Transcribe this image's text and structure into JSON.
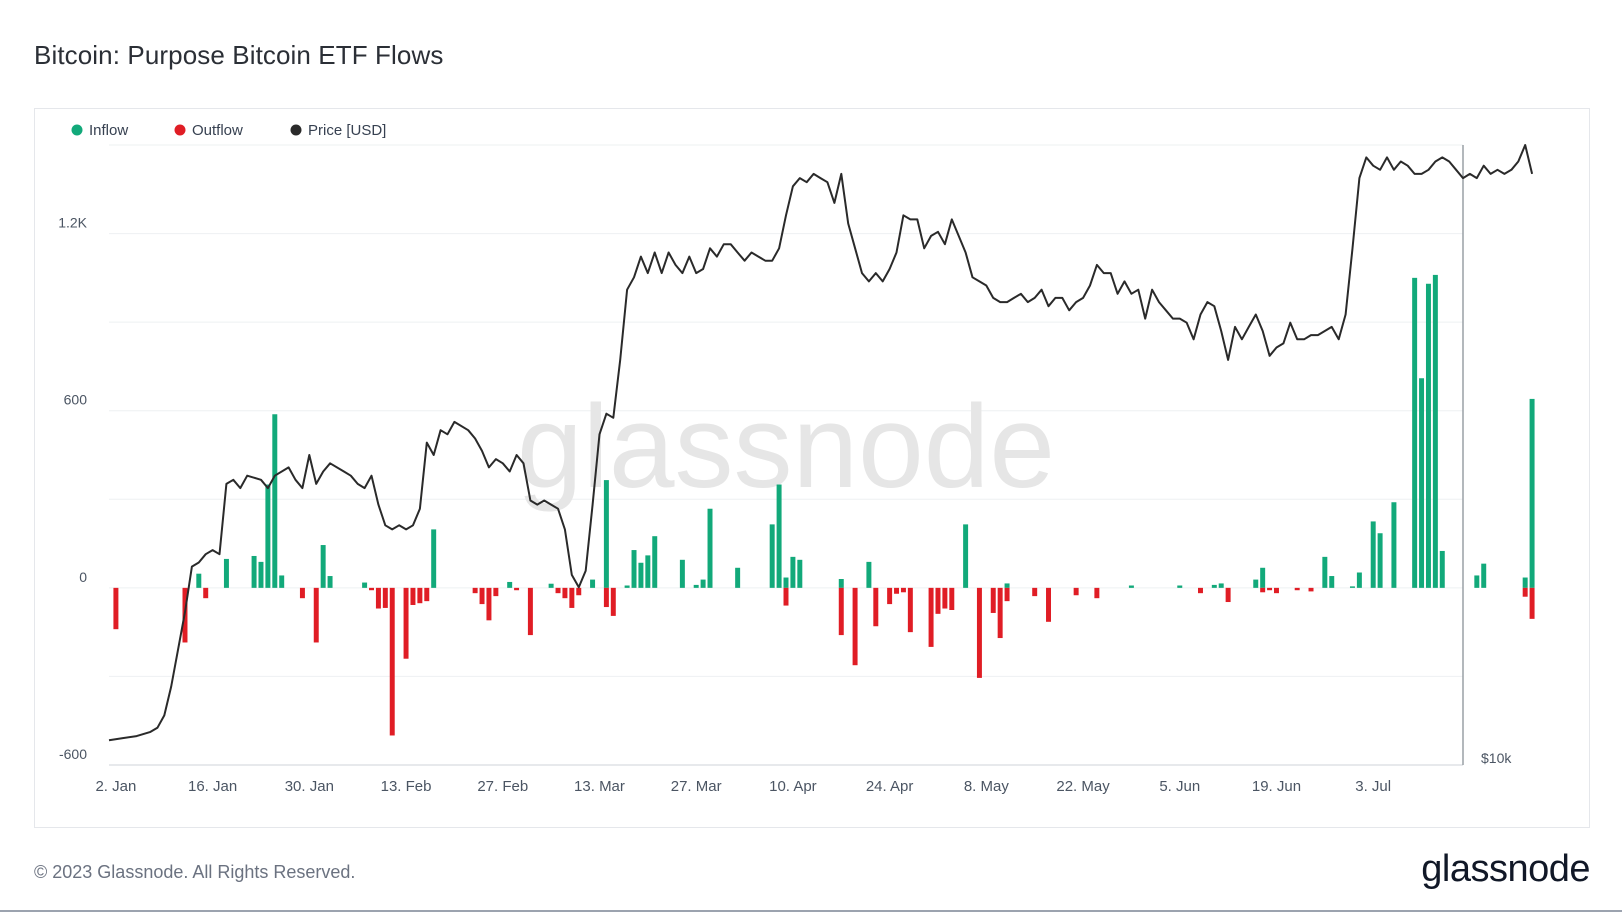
{
  "header": {
    "title": "Bitcoin: Purpose Bitcoin ETF Flows"
  },
  "footer": {
    "copyright": "© 2023 Glassnode. All Rights Reserved.",
    "logo": "glassnode"
  },
  "watermark": "glassnode",
  "colors": {
    "inflow": "#12a97a",
    "outflow": "#e01d25",
    "price": "#2a2a2a",
    "grid": "#eef0f2"
  },
  "chart_data": {
    "type": "bar",
    "title": "Bitcoin: Purpose Bitcoin ETF Flows",
    "legend": [
      {
        "key": "inflow",
        "label": "Inflow",
        "color": "#12a97a"
      },
      {
        "key": "outflow",
        "label": "Outflow",
        "color": "#e01d25"
      },
      {
        "key": "price",
        "label": "Price [USD]",
        "color": "#2a2a2a"
      }
    ],
    "legend_position": "top-left",
    "grid": true,
    "x_ticks": [
      "2. Jan",
      "16. Jan",
      "30. Jan",
      "13. Feb",
      "27. Feb",
      "13. Mar",
      "27. Mar",
      "10. Apr",
      "24. Apr",
      "8. May",
      "22. May",
      "5. Jun",
      "19. Jun",
      "3. Jul"
    ],
    "x_range": [
      "2023-01-01",
      "2023-07-16"
    ],
    "y_left": {
      "ticks": [
        -600,
        0,
        600,
        1200
      ],
      "tick_labels": [
        "-600",
        "0",
        "600",
        "1.2K"
      ],
      "range": [
        -600,
        1500
      ]
    },
    "y_right": {
      "ticks": [
        "$10k"
      ],
      "range": [
        16000,
        31000
      ]
    },
    "inflow": [
      [
        5,
        0
      ],
      [
        7,
        0
      ],
      [
        10,
        0
      ],
      [
        13,
        48
      ],
      [
        17,
        98
      ],
      [
        21,
        108
      ],
      [
        22,
        88
      ],
      [
        23,
        350
      ],
      [
        24,
        588
      ],
      [
        25,
        42
      ],
      [
        31,
        145
      ],
      [
        32,
        40
      ],
      [
        36,
        0
      ],
      [
        37,
        18
      ],
      [
        47,
        198
      ],
      [
        57,
        0
      ],
      [
        58,
        20
      ],
      [
        64,
        14
      ],
      [
        70,
        28
      ],
      [
        72,
        365
      ],
      [
        75,
        8
      ],
      [
        76,
        128
      ],
      [
        77,
        85
      ],
      [
        78,
        110
      ],
      [
        79,
        175
      ],
      [
        83,
        95
      ],
      [
        85,
        10
      ],
      [
        86,
        28
      ],
      [
        87,
        268
      ],
      [
        91,
        68
      ],
      [
        96,
        215
      ],
      [
        97,
        350
      ],
      [
        98,
        35
      ],
      [
        99,
        105
      ],
      [
        100,
        95
      ],
      [
        106,
        30
      ],
      [
        110,
        88
      ],
      [
        124,
        215
      ],
      [
        130,
        15
      ],
      [
        148,
        8
      ],
      [
        155,
        8
      ],
      [
        160,
        10
      ],
      [
        161,
        15
      ],
      [
        166,
        28
      ],
      [
        167,
        68
      ],
      [
        176,
        105
      ],
      [
        177,
        40
      ],
      [
        180,
        5
      ],
      [
        181,
        52
      ],
      [
        183,
        225
      ],
      [
        184,
        185
      ],
      [
        186,
        290
      ],
      [
        189,
        1050
      ],
      [
        190,
        710
      ],
      [
        191,
        1030
      ],
      [
        192,
        1060
      ],
      [
        193,
        125
      ],
      [
        198,
        42
      ],
      [
        199,
        82
      ],
      [
        205,
        35
      ],
      [
        206,
        640
      ]
    ],
    "outflow": [
      [
        1,
        -140
      ],
      [
        11,
        -185
      ],
      [
        14,
        -35
      ],
      [
        28,
        -35
      ],
      [
        30,
        -185
      ],
      [
        38,
        -8
      ],
      [
        39,
        -70
      ],
      [
        40,
        -68
      ],
      [
        41,
        -500
      ],
      [
        43,
        -240
      ],
      [
        44,
        -58
      ],
      [
        45,
        -52
      ],
      [
        46,
        -45
      ],
      [
        53,
        -18
      ],
      [
        54,
        -55
      ],
      [
        55,
        -110
      ],
      [
        56,
        -28
      ],
      [
        59,
        -8
      ],
      [
        61,
        -160
      ],
      [
        65,
        -18
      ],
      [
        66,
        -35
      ],
      [
        67,
        -68
      ],
      [
        68,
        -25
      ],
      [
        72,
        -65
      ],
      [
        73,
        -95
      ],
      [
        98,
        -60
      ],
      [
        106,
        -160
      ],
      [
        108,
        -262
      ],
      [
        111,
        -130
      ],
      [
        113,
        -55
      ],
      [
        114,
        -20
      ],
      [
        115,
        -15
      ],
      [
        116,
        -150
      ],
      [
        119,
        -200
      ],
      [
        120,
        -88
      ],
      [
        121,
        -70
      ],
      [
        122,
        -75
      ],
      [
        126,
        -305
      ],
      [
        128,
        -85
      ],
      [
        129,
        -170
      ],
      [
        130,
        -45
      ],
      [
        134,
        -28
      ],
      [
        136,
        -115
      ],
      [
        140,
        -25
      ],
      [
        143,
        -35
      ],
      [
        158,
        -18
      ],
      [
        162,
        -48
      ],
      [
        167,
        -15
      ],
      [
        168,
        -8
      ],
      [
        169,
        -18
      ],
      [
        172,
        -8
      ],
      [
        174,
        -12
      ],
      [
        205,
        -30
      ],
      [
        206,
        -105
      ]
    ],
    "price": [
      [
        0,
        16600
      ],
      [
        2,
        16650
      ],
      [
        4,
        16700
      ],
      [
        6,
        16800
      ],
      [
        7,
        16900
      ],
      [
        8,
        17200
      ],
      [
        9,
        17900
      ],
      [
        10,
        18800
      ],
      [
        11,
        19700
      ],
      [
        12,
        20800
      ],
      [
        13,
        20900
      ],
      [
        14,
        21100
      ],
      [
        15,
        21200
      ],
      [
        16,
        21100
      ],
      [
        17,
        22800
      ],
      [
        18,
        22900
      ],
      [
        19,
        22700
      ],
      [
        20,
        23000
      ],
      [
        22,
        22900
      ],
      [
        23,
        22700
      ],
      [
        24,
        23000
      ],
      [
        26,
        23200
      ],
      [
        27,
        22900
      ],
      [
        28,
        22700
      ],
      [
        29,
        23500
      ],
      [
        30,
        22800
      ],
      [
        31,
        23100
      ],
      [
        32,
        23300
      ],
      [
        34,
        23100
      ],
      [
        35,
        23000
      ],
      [
        36,
        22800
      ],
      [
        37,
        22700
      ],
      [
        38,
        23000
      ],
      [
        39,
        22300
      ],
      [
        40,
        21800
      ],
      [
        41,
        21700
      ],
      [
        42,
        21800
      ],
      [
        43,
        21700
      ],
      [
        44,
        21800
      ],
      [
        45,
        22200
      ],
      [
        46,
        23800
      ],
      [
        47,
        23500
      ],
      [
        48,
        24100
      ],
      [
        49,
        24000
      ],
      [
        50,
        24300
      ],
      [
        52,
        24100
      ],
      [
        53,
        23900
      ],
      [
        54,
        23600
      ],
      [
        55,
        23200
      ],
      [
        56,
        23400
      ],
      [
        57,
        23300
      ],
      [
        58,
        23100
      ],
      [
        59,
        23500
      ],
      [
        60,
        23300
      ],
      [
        61,
        22400
      ],
      [
        62,
        22300
      ],
      [
        63,
        22400
      ],
      [
        64,
        22300
      ],
      [
        65,
        22200
      ],
      [
        66,
        21700
      ],
      [
        67,
        20600
      ],
      [
        68,
        20300
      ],
      [
        69,
        20700
      ],
      [
        70,
        22300
      ],
      [
        71,
        24000
      ],
      [
        72,
        24500
      ],
      [
        73,
        24400
      ],
      [
        74,
        25800
      ],
      [
        75,
        27500
      ],
      [
        76,
        27800
      ],
      [
        77,
        28300
      ],
      [
        78,
        27900
      ],
      [
        79,
        28400
      ],
      [
        80,
        27900
      ],
      [
        81,
        28400
      ],
      [
        82,
        28100
      ],
      [
        83,
        27900
      ],
      [
        84,
        28300
      ],
      [
        85,
        27900
      ],
      [
        86,
        28000
      ],
      [
        87,
        28500
      ],
      [
        88,
        28300
      ],
      [
        89,
        28600
      ],
      [
        90,
        28600
      ],
      [
        91,
        28400
      ],
      [
        92,
        28200
      ],
      [
        93,
        28400
      ],
      [
        94,
        28300
      ],
      [
        95,
        28200
      ],
      [
        96,
        28200
      ],
      [
        97,
        28500
      ],
      [
        98,
        29300
      ],
      [
        99,
        30000
      ],
      [
        100,
        30200
      ],
      [
        101,
        30100
      ],
      [
        102,
        30300
      ],
      [
        103,
        30200
      ],
      [
        104,
        30100
      ],
      [
        105,
        29600
      ],
      [
        106,
        30300
      ],
      [
        107,
        29100
      ],
      [
        108,
        28500
      ],
      [
        109,
        27900
      ],
      [
        110,
        27700
      ],
      [
        111,
        27900
      ],
      [
        112,
        27700
      ],
      [
        113,
        28000
      ],
      [
        114,
        28400
      ],
      [
        115,
        29300
      ],
      [
        116,
        29200
      ],
      [
        117,
        29200
      ],
      [
        118,
        28500
      ],
      [
        119,
        28800
      ],
      [
        120,
        28900
      ],
      [
        121,
        28600
      ],
      [
        122,
        29200
      ],
      [
        123,
        28800
      ],
      [
        124,
        28400
      ],
      [
        125,
        27800
      ],
      [
        126,
        27700
      ],
      [
        127,
        27600
      ],
      [
        128,
        27300
      ],
      [
        129,
        27200
      ],
      [
        130,
        27200
      ],
      [
        131,
        27300
      ],
      [
        132,
        27400
      ],
      [
        133,
        27200
      ],
      [
        134,
        27300
      ],
      [
        135,
        27500
      ],
      [
        136,
        27100
      ],
      [
        137,
        27300
      ],
      [
        138,
        27300
      ],
      [
        139,
        27000
      ],
      [
        140,
        27200
      ],
      [
        141,
        27300
      ],
      [
        142,
        27600
      ],
      [
        143,
        28100
      ],
      [
        144,
        27900
      ],
      [
        145,
        27900
      ],
      [
        146,
        27400
      ],
      [
        147,
        27700
      ],
      [
        148,
        27400
      ],
      [
        149,
        27500
      ],
      [
        150,
        26800
      ],
      [
        151,
        27500
      ],
      [
        152,
        27200
      ],
      [
        153,
        27000
      ],
      [
        154,
        26800
      ],
      [
        155,
        26800
      ],
      [
        156,
        26700
      ],
      [
        157,
        26300
      ],
      [
        158,
        26900
      ],
      [
        159,
        27200
      ],
      [
        160,
        27100
      ],
      [
        161,
        26500
      ],
      [
        162,
        25800
      ],
      [
        163,
        26600
      ],
      [
        164,
        26300
      ],
      [
        165,
        26600
      ],
      [
        166,
        26900
      ],
      [
        167,
        26500
      ],
      [
        168,
        25900
      ],
      [
        169,
        26100
      ],
      [
        170,
        26200
      ],
      [
        171,
        26700
      ],
      [
        172,
        26300
      ],
      [
        173,
        26300
      ],
      [
        174,
        26400
      ],
      [
        175,
        26400
      ],
      [
        176,
        26500
      ],
      [
        177,
        26600
      ],
      [
        178,
        26300
      ],
      [
        179,
        26900
      ],
      [
        180,
        28500
      ],
      [
        181,
        30200
      ],
      [
        182,
        30700
      ],
      [
        183,
        30500
      ],
      [
        184,
        30400
      ],
      [
        185,
        30700
      ],
      [
        186,
        30400
      ],
      [
        187,
        30600
      ],
      [
        188,
        30500
      ],
      [
        189,
        30300
      ],
      [
        190,
        30300
      ],
      [
        191,
        30400
      ],
      [
        192,
        30600
      ],
      [
        193,
        30700
      ],
      [
        194,
        30600
      ],
      [
        195,
        30400
      ],
      [
        196,
        30200
      ],
      [
        197,
        30300
      ],
      [
        198,
        30200
      ],
      [
        199,
        30500
      ],
      [
        200,
        30300
      ],
      [
        201,
        30400
      ],
      [
        202,
        30300
      ],
      [
        203,
        30400
      ],
      [
        204,
        30600
      ],
      [
        205,
        31000
      ],
      [
        206,
        30300
      ]
    ]
  }
}
